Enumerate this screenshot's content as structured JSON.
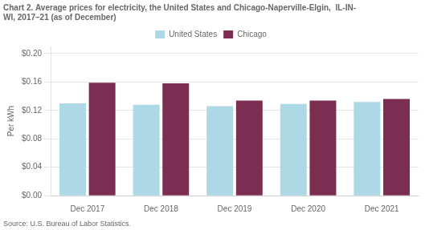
{
  "chart_data": {
    "type": "bar",
    "title": [
      "Chart 2. Average prices for electricity, the United States and Chicago-Naperville-Elgin,  IL-IN-",
      "WI, 2017–21 (as of December)"
    ],
    "y_label": "Per kWh",
    "annotations": [
      "Source: U.S. Bureau of Labor Statistics."
    ],
    "categories": [
      "Dec 2017",
      "Dec 2018",
      "Dec 2019",
      "Dec 2020",
      "Dec 2021"
    ],
    "series": [
      {
        "name": "United States",
        "color": "#add8e6",
        "values": [
          0.13,
          0.128,
          0.126,
          0.129,
          0.132
        ]
      },
      {
        "name": "Chicago",
        "color": "#7b2d52",
        "values": [
          0.159,
          0.158,
          0.134,
          0.134,
          0.136
        ]
      }
    ],
    "ylim": [
      0,
      0.21
    ],
    "yticks": [
      {
        "value": 0.0,
        "label": "$0.00"
      },
      {
        "value": 0.04,
        "label": "$0.04"
      },
      {
        "value": 0.08,
        "label": "$0.08"
      },
      {
        "value": 0.12,
        "label": "$0.12"
      },
      {
        "value": 0.16,
        "label": "$0.16"
      },
      {
        "value": 0.2,
        "label": "$0.20"
      }
    ],
    "grid": true,
    "legend": "top"
  }
}
